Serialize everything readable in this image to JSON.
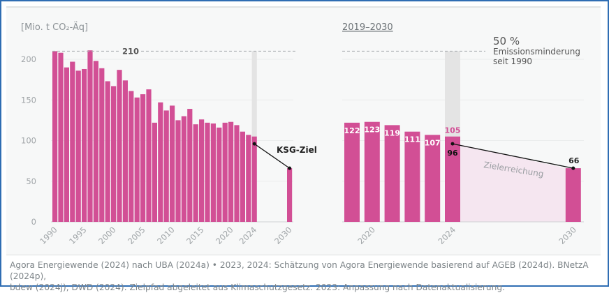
{
  "chart_data": [
    {
      "type": "bar",
      "unit_label": "[Mio. t CO₂-Äq]",
      "categories": [
        "1990",
        "1991",
        "1992",
        "1993",
        "1994",
        "1995",
        "1996",
        "1997",
        "1998",
        "1999",
        "2000",
        "2001",
        "2002",
        "2003",
        "2004",
        "2005",
        "2006",
        "2007",
        "2008",
        "2009",
        "2010",
        "2011",
        "2012",
        "2013",
        "2014",
        "2015",
        "2016",
        "2017",
        "2018",
        "2019",
        "2020",
        "2021",
        "2022",
        "2023",
        "2024",
        "2030"
      ],
      "values": [
        210,
        208,
        190,
        197,
        186,
        188,
        211,
        198,
        189,
        173,
        167,
        187,
        174,
        161,
        153,
        157,
        163,
        122,
        147,
        137,
        143,
        125,
        130,
        139,
        120,
        126,
        122,
        121,
        116,
        122,
        123,
        119,
        111,
        107,
        105,
        66
      ],
      "xtick_labels": [
        "1990",
        "1995",
        "2000",
        "2005",
        "2010",
        "2015",
        "2020",
        "2024",
        "2030"
      ],
      "ytick_labels": [
        "0",
        "50",
        "100",
        "150",
        "200"
      ],
      "ylim": [
        0,
        215
      ],
      "reference_line": {
        "value": 210,
        "label": "210"
      },
      "target_path": {
        "label": "KSG-Ziel",
        "points": [
          {
            "x": "2024",
            "y": 96
          },
          {
            "x": "2030",
            "y": 66
          }
        ]
      },
      "highlight_year": "2024",
      "grid": true,
      "bar_color": "#d24f95"
    },
    {
      "type": "bar",
      "title": "2019–2030",
      "categories": [
        "2019",
        "2020",
        "2021",
        "2022",
        "2023",
        "2024",
        "2030"
      ],
      "values": [
        122,
        123,
        119,
        111,
        107,
        105,
        66
      ],
      "data_labels": [
        "122",
        "123",
        "119",
        "111",
        "107",
        "105",
        "66"
      ],
      "xtick_labels": [
        "2020",
        "2024",
        "2030"
      ],
      "ylim": [
        0,
        215
      ],
      "reference_line": {
        "value": 105,
        "pct_label": "50 %",
        "label_line1": "Emissionsminderung",
        "label_line2": "seit 1990"
      },
      "target_path": {
        "points": [
          {
            "x": "2024",
            "y": 96,
            "label": "96"
          },
          {
            "x": "2030",
            "y": 66,
            "label": "66"
          }
        ]
      },
      "area_label": "Zielerreichung",
      "grid": true,
      "bar_color": "#d24f95",
      "highlight_label_color": "#d24f95",
      "area_color": "#f5e6f0"
    }
  ],
  "footer": {
    "line1": "Agora Energiewende (2024) nach UBA (2024a) • 2023, 2024: Schätzung von Agora Energiewende basierend auf AGEB (2024d). BNetzA (2024p),",
    "line2": "bdew (2024j), DWD (2024). Zielpfad abgeleitet aus Klimaschutzgesetz. 2023: Anpassung nach Datenaktualisierung."
  }
}
